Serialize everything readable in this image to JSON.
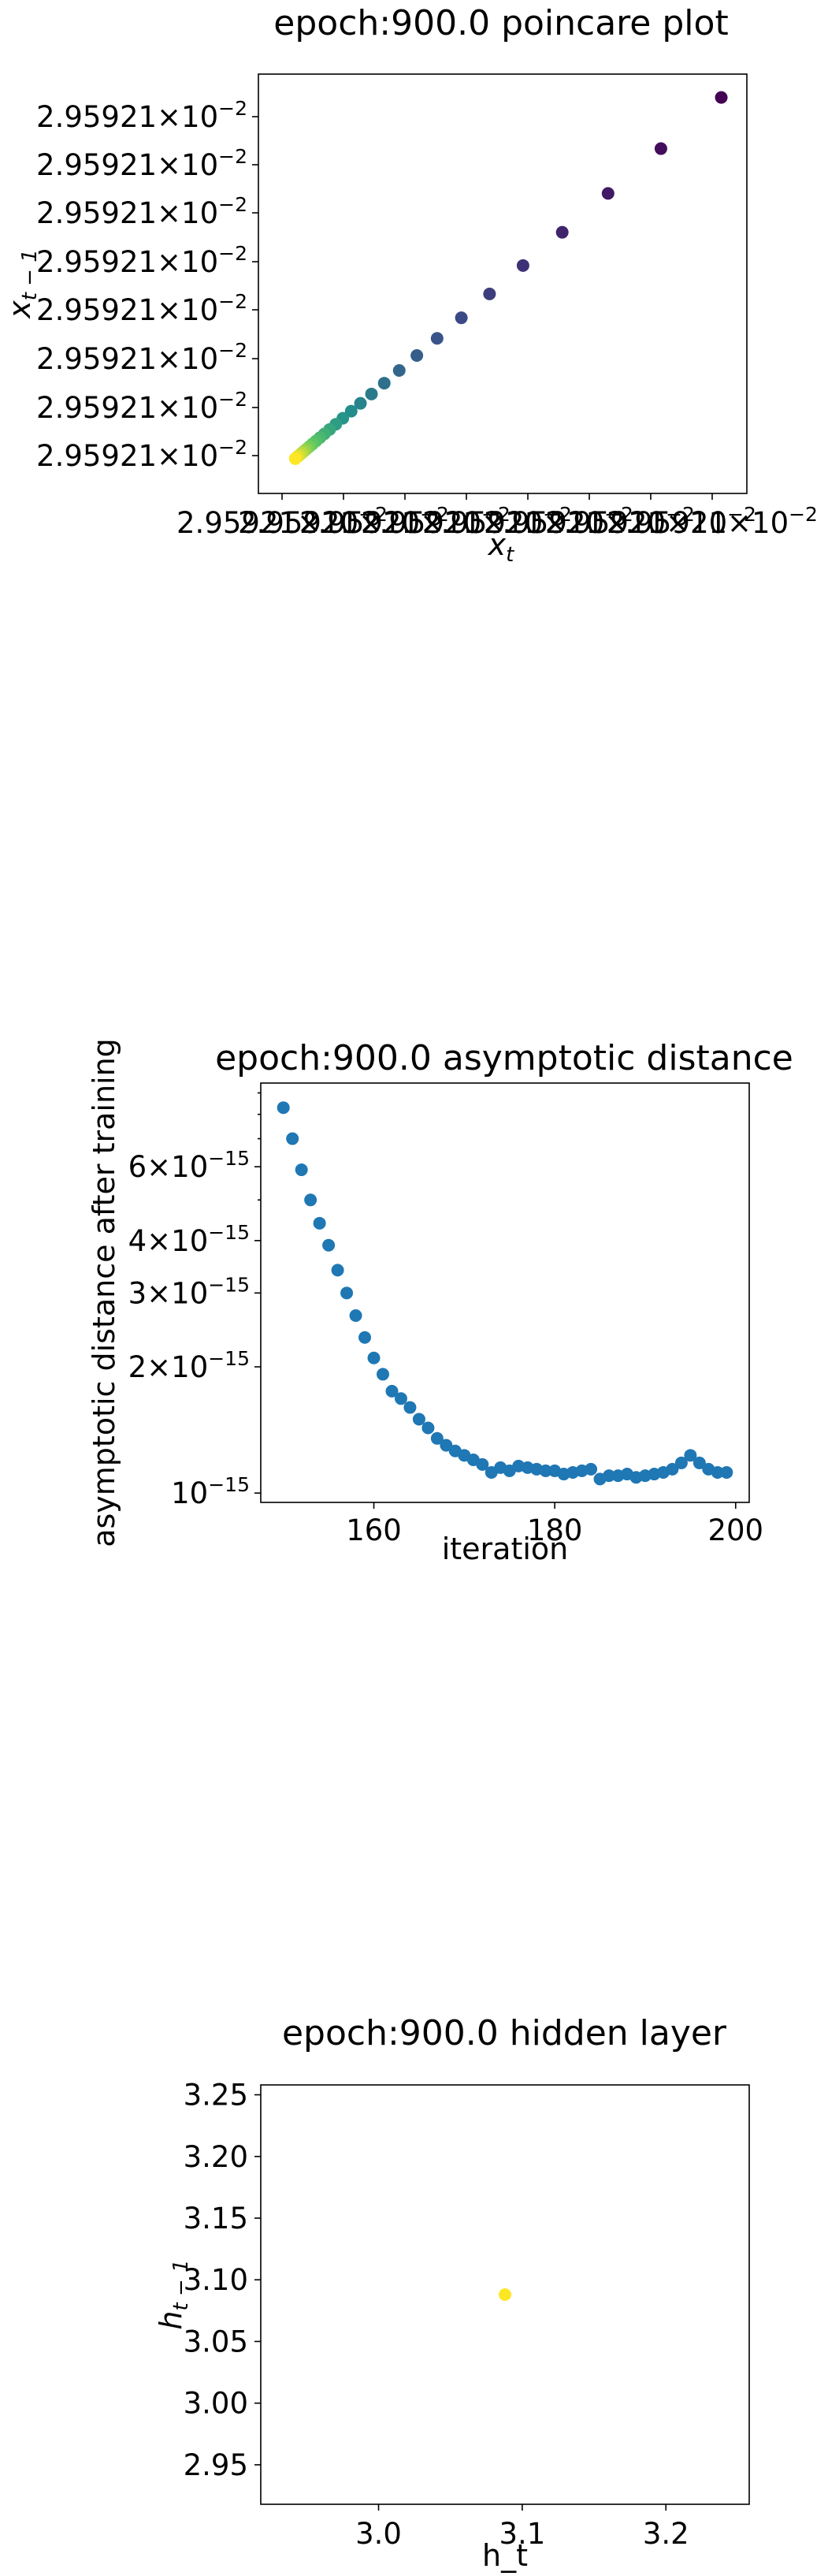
{
  "chart_data": [
    {
      "type": "scatter",
      "title": "epoch:900.0 poincare plot",
      "xlabel": "x_t",
      "ylabel": "x_{t-1}",
      "yticklabels": [
        "2.95921×10⁻²",
        "2.95921×10⁻²",
        "2.95921×10⁻²",
        "2.95921×10⁻²",
        "2.95921×10⁻²",
        "2.95921×10⁻²",
        "2.95921×10⁻²",
        "2.95921×10⁻²"
      ],
      "xticklabels": [
        "2.95921×10⁻²",
        "2.95921×10⁻²",
        "2.95921×10⁻²",
        "2.95921×10⁻²",
        "2.95921×10⁻²",
        "2.95921×10⁻²",
        "2.95921×10⁻²",
        "2.95921×10⁻²"
      ],
      "colormap": "viridis",
      "x": [
        0.0,
        0.05,
        0.1,
        0.15,
        0.2,
        0.26,
        0.32,
        0.39,
        0.47,
        0.56,
        0.66,
        0.78,
        0.92,
        1.08,
        1.27,
        1.48,
        1.73,
        2.02,
        2.36,
        2.76,
        3.22,
        3.77,
        4.41,
        5.17,
        6.06,
        7.1,
        8.3,
        9.67
      ],
      "y": [
        0.0,
        0.05,
        0.1,
        0.15,
        0.2,
        0.26,
        0.32,
        0.39,
        0.47,
        0.56,
        0.66,
        0.78,
        0.92,
        1.08,
        1.27,
        1.48,
        1.73,
        2.02,
        2.36,
        2.76,
        3.22,
        3.77,
        4.41,
        5.17,
        6.06,
        7.1,
        8.3,
        9.67
      ],
      "grid": false
    },
    {
      "type": "scatter",
      "title": "epoch:900.0 asymptotic distance",
      "xlabel": "iteration",
      "ylabel": "asymptotic distance after training",
      "yscale": "log",
      "xlim": [
        147.5,
        201.5
      ],
      "ylim": [
        9.5e-16,
        9.5e-15
      ],
      "xticks": [
        160,
        180,
        200
      ],
      "xticklabels": [
        "160",
        "180",
        "200"
      ],
      "yticks": [
        1e-15,
        2e-15,
        3e-15,
        4e-15,
        6e-15
      ],
      "yticklabels": [
        "10⁻¹⁵",
        "2×10⁻¹⁵",
        "3×10⁻¹⁵",
        "4×10⁻¹⁵",
        "6×10⁻¹⁵"
      ],
      "color": "#1f77b4",
      "x": [
        150,
        151,
        152,
        153,
        154,
        155,
        156,
        157,
        158,
        159,
        160,
        161,
        162,
        163,
        164,
        165,
        166,
        167,
        168,
        169,
        170,
        171,
        172,
        173,
        174,
        175,
        176,
        177,
        178,
        179,
        180,
        181,
        182,
        183,
        184,
        185,
        186,
        187,
        188,
        189,
        190,
        191,
        192,
        193,
        194,
        195,
        196,
        197,
        198,
        199
      ],
      "y": [
        8.3e-15,
        7e-15,
        5.9e-15,
        5e-15,
        4.4e-15,
        3.9e-15,
        3.4e-15,
        3e-15,
        2.65e-15,
        2.35e-15,
        2.1e-15,
        1.92e-15,
        1.75e-15,
        1.68e-15,
        1.6e-15,
        1.5e-15,
        1.43e-15,
        1.35e-15,
        1.3e-15,
        1.26e-15,
        1.23e-15,
        1.2e-15,
        1.17e-15,
        1.12e-15,
        1.15e-15,
        1.13e-15,
        1.16e-15,
        1.15e-15,
        1.14e-15,
        1.13e-15,
        1.13e-15,
        1.11e-15,
        1.12e-15,
        1.13e-15,
        1.14e-15,
        1.08e-15,
        1.1e-15,
        1.1e-15,
        1.11e-15,
        1.09e-15,
        1.1e-15,
        1.11e-15,
        1.12e-15,
        1.14e-15,
        1.18e-15,
        1.23e-15,
        1.18e-15,
        1.14e-15,
        1.12e-15,
        1.12e-15
      ],
      "grid": false
    },
    {
      "type": "scatter",
      "title": "epoch:900.0 hidden layer",
      "xlabel": "h_t",
      "ylabel": "h_{t-1}",
      "xlim": [
        2.918,
        3.258
      ],
      "ylim": [
        2.918,
        3.258
      ],
      "xticks": [
        3.0,
        3.1,
        3.2
      ],
      "xticklabels": [
        "3.0",
        "3.1",
        "3.2"
      ],
      "yticks": [
        2.95,
        3.0,
        3.05,
        3.1,
        3.15,
        3.2,
        3.25
      ],
      "yticklabels": [
        "2.95",
        "3.00",
        "3.05",
        "3.10",
        "3.15",
        "3.20",
        "3.25"
      ],
      "color": "#fde725",
      "x": [
        3.088
      ],
      "y": [
        3.088
      ],
      "grid": false
    }
  ]
}
